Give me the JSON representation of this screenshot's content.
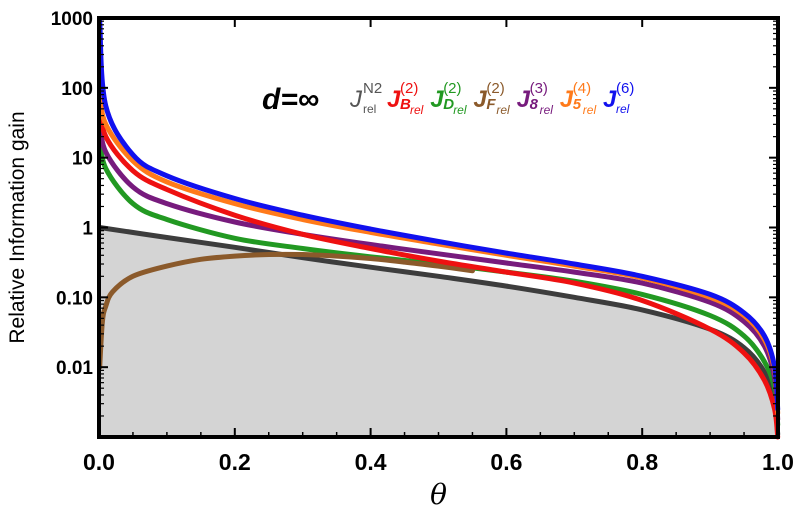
{
  "chart_data": {
    "type": "line",
    "title": "",
    "xlabel": "θ",
    "ylabel": "Relative Information gain",
    "xlim": [
      0,
      1
    ],
    "ylim": [
      0.001,
      1000
    ],
    "yscale": "log",
    "x_ticks": [
      "0.0",
      "0.2",
      "0.4",
      "0.6",
      "0.8",
      "1.0"
    ],
    "y_ticks": [
      {
        "value": 1000,
        "label": "1000"
      },
      {
        "value": 100,
        "label": "100"
      },
      {
        "value": 10,
        "label": "10"
      },
      {
        "value": 1,
        "label": "1"
      },
      {
        "value": 0.1,
        "label": "0.10"
      },
      {
        "value": 0.01,
        "label": "0.01"
      }
    ],
    "annotation": "d=∞",
    "shaded_region": "area below J_rel^N2 curve (gray)",
    "series": [
      {
        "key": "n2",
        "name": "J_rel^N2",
        "base": "J",
        "sup": "N2",
        "sub": "rel",
        "sub_letter": "",
        "color": "#3d3d3d",
        "x": [
          0.001,
          0.1,
          0.2,
          0.3,
          0.4,
          0.5,
          0.6,
          0.7,
          0.8,
          0.9,
          0.95,
          0.98,
          0.995,
          0.9995
        ],
        "y": [
          1.0,
          0.72,
          0.52,
          0.37,
          0.27,
          0.2,
          0.145,
          0.1,
          0.066,
          0.035,
          0.019,
          0.0085,
          0.0032,
          0.0011
        ]
      },
      {
        "key": "B2",
        "name": "J_B_rel^(2)",
        "base": "J",
        "sup": "(2)",
        "sub": "rel",
        "sub_letter": "B",
        "color": "#ee1111",
        "x": [
          0.001,
          0.01,
          0.05,
          0.1,
          0.2,
          0.3,
          0.4,
          0.5,
          0.6,
          0.7,
          0.8,
          0.9,
          0.95,
          0.98,
          0.995,
          0.9995
        ],
        "y": [
          60,
          20,
          6.5,
          3.5,
          1.5,
          0.8,
          0.5,
          0.33,
          0.23,
          0.16,
          0.09,
          0.035,
          0.016,
          0.0065,
          0.0025,
          0.001
        ]
      },
      {
        "key": "D2",
        "name": "J_D_rel^(2)",
        "base": "J",
        "sup": "(2)",
        "sub": "rel",
        "sub_letter": "D",
        "color": "#229922",
        "x": [
          0.001,
          0.01,
          0.05,
          0.1,
          0.2,
          0.3,
          0.4,
          0.5,
          0.6,
          0.7,
          0.8,
          0.9,
          0.95,
          0.98,
          0.995,
          0.9995
        ],
        "y": [
          20,
          7,
          2.2,
          1.3,
          0.7,
          0.5,
          0.38,
          0.3,
          0.23,
          0.17,
          0.11,
          0.055,
          0.028,
          0.012,
          0.005,
          0.0015
        ]
      },
      {
        "key": "F2",
        "name": "J_F_rel^(2)",
        "base": "J",
        "sup": "(2)",
        "sub": "rel",
        "sub_letter": "F",
        "color": "#8b5a2b",
        "x": [
          0.001,
          0.005,
          0.01,
          0.02,
          0.05,
          0.1,
          0.15,
          0.2,
          0.25,
          0.3,
          0.35,
          0.4,
          0.45,
          0.5,
          0.55
        ],
        "y": [
          0.01,
          0.045,
          0.075,
          0.12,
          0.2,
          0.28,
          0.35,
          0.39,
          0.41,
          0.41,
          0.39,
          0.36,
          0.32,
          0.28,
          0.24
        ]
      },
      {
        "key": "83",
        "name": "J_8_rel^(3)",
        "base": "J",
        "sup": "(3)",
        "sub": "rel",
        "sub_letter": "8",
        "color": "#771b7d",
        "x": [
          0.001,
          0.01,
          0.05,
          0.1,
          0.2,
          0.3,
          0.4,
          0.5,
          0.6,
          0.7,
          0.8,
          0.9,
          0.95,
          0.98,
          0.995,
          0.9995
        ],
        "y": [
          35,
          12,
          3.8,
          2.2,
          1.2,
          0.8,
          0.57,
          0.42,
          0.31,
          0.23,
          0.16,
          0.085,
          0.045,
          0.02,
          0.007,
          0.0018
        ]
      },
      {
        "key": "54",
        "name": "J_5_rel^(4)",
        "base": "J",
        "sup": "(4)",
        "sub": "rel",
        "sub_letter": "5",
        "color": "#ff7a1a",
        "x": [
          0.001,
          0.01,
          0.05,
          0.1,
          0.2,
          0.3,
          0.4,
          0.5,
          0.6,
          0.7,
          0.8,
          0.9,
          0.95,
          0.98,
          0.995,
          0.9995
        ],
        "y": [
          90,
          30,
          9,
          4.5,
          2.2,
          1.3,
          0.85,
          0.58,
          0.4,
          0.28,
          0.19,
          0.1,
          0.055,
          0.025,
          0.009,
          0.0022
        ]
      },
      {
        "key": "6",
        "name": "J_rel^(6)",
        "base": "J",
        "sup": "(6)",
        "sub": "rel",
        "sub_letter": "",
        "color": "#1111ee",
        "x": [
          0.001,
          0.01,
          0.05,
          0.1,
          0.2,
          0.3,
          0.4,
          0.5,
          0.6,
          0.7,
          0.8,
          0.9,
          0.95,
          0.98,
          0.995,
          0.9995
        ],
        "y": [
          900,
          55,
          11,
          5.5,
          2.6,
          1.5,
          0.95,
          0.63,
          0.43,
          0.3,
          0.2,
          0.11,
          0.06,
          0.028,
          0.01,
          0.0025
        ]
      }
    ]
  }
}
